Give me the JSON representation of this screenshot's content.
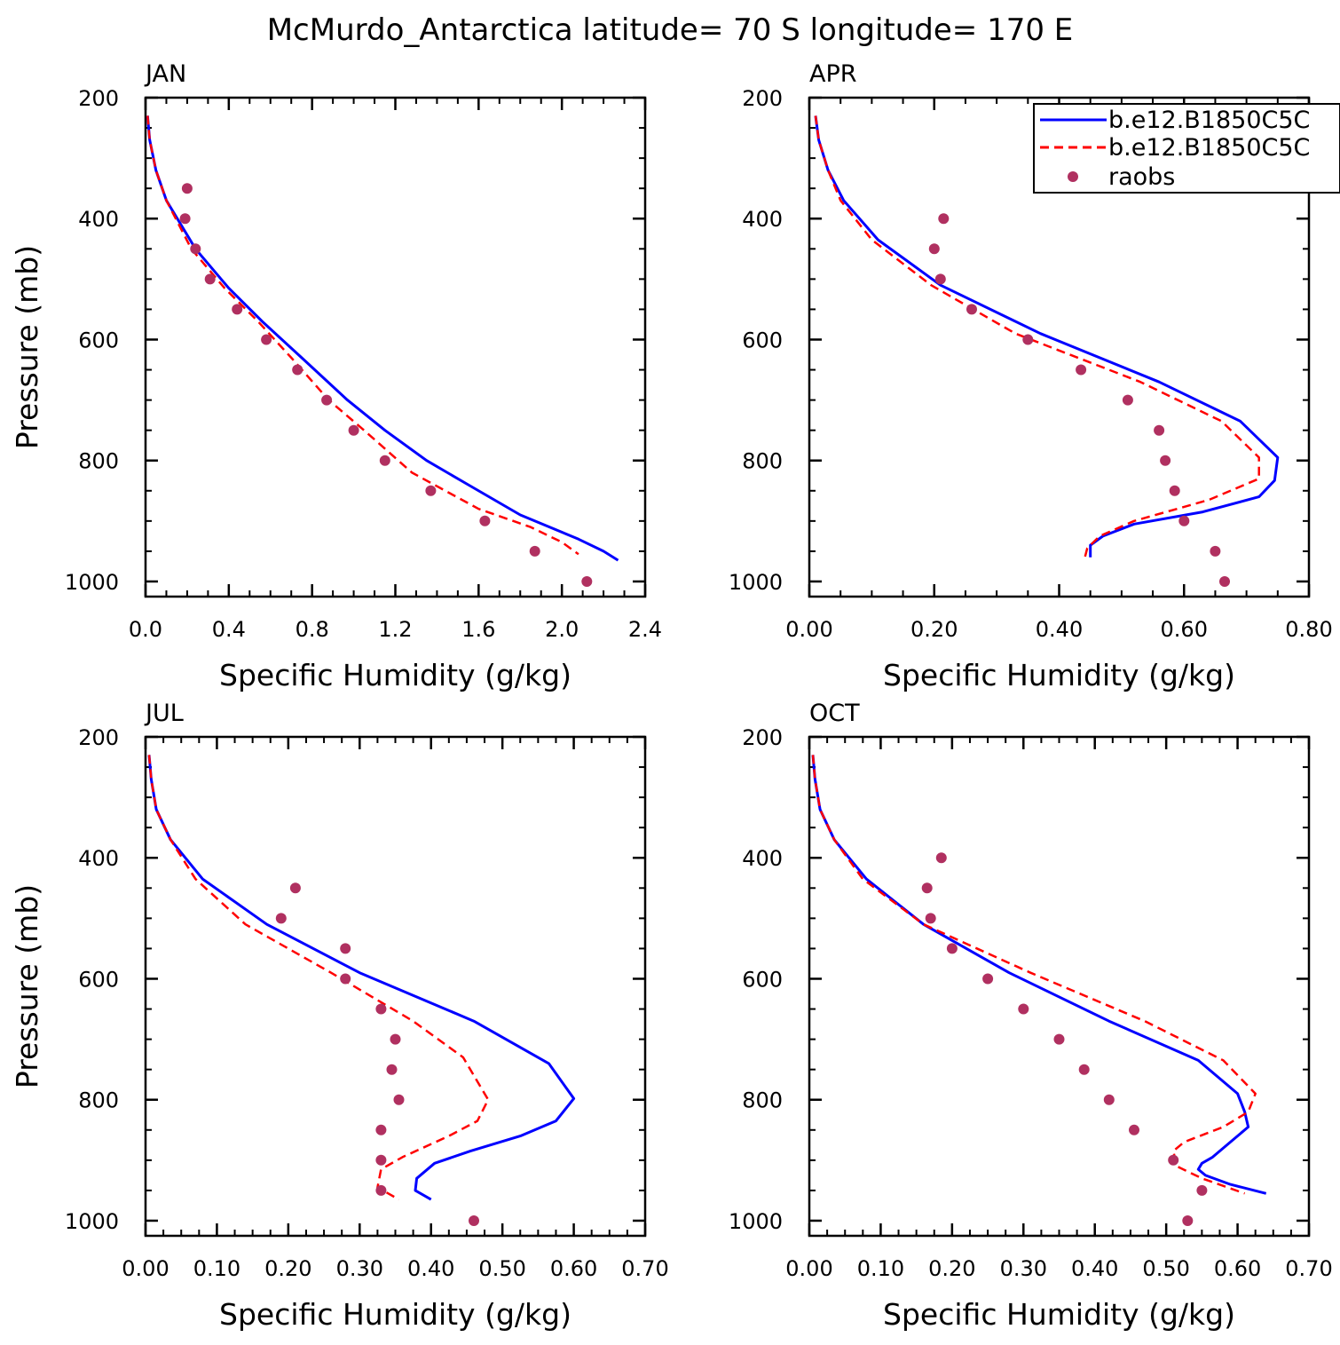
{
  "title": "McMurdo_Antarctica  latitude= 70 S longitude= 170 E",
  "legend": {
    "placement": "top-right of APR panel",
    "entries": [
      {
        "label": "b.e12.B1850C5C",
        "style": "solid",
        "color": "#0000ff"
      },
      {
        "label": "b.e12.B1850C5C",
        "style": "dashed",
        "color": "#ff0000"
      },
      {
        "label": "raobs",
        "style": "dots",
        "color": "#b03060"
      }
    ]
  },
  "colors": {
    "model_solid": "#0000ff",
    "model_dashed": "#ff0000",
    "raobs": "#b03060"
  },
  "chart_data": [
    {
      "type": "line",
      "panel_label": "JAN",
      "xlabel": "Specific Humidity (g/kg)",
      "ylabel": "Pressure (mb)",
      "xlim": [
        0,
        2.4
      ],
      "ylim": [
        200,
        1025
      ],
      "y_inverted": true,
      "xticks": [
        "0.0",
        "0.4",
        "0.8",
        "1.2",
        "1.6",
        "2.0",
        "2.4"
      ],
      "xtick_values": [
        0,
        0.4,
        0.8,
        1.2,
        1.6,
        2.0,
        2.4
      ],
      "xminor": 0.1,
      "yticks": [
        "200",
        "400",
        "600",
        "800",
        "1000"
      ],
      "ytick_values": [
        200,
        400,
        600,
        800,
        1000
      ],
      "yminor": 50,
      "series": [
        {
          "style": "solid",
          "color": "#0000ff",
          "x": [
            0.01,
            0.02,
            0.05,
            0.1,
            0.24,
            0.4,
            0.56,
            0.75,
            0.97,
            1.15,
            1.35,
            1.55,
            1.8,
            2.08,
            2.2,
            2.27
          ],
          "y": [
            230,
            270,
            320,
            370,
            450,
            515,
            570,
            630,
            700,
            750,
            800,
            840,
            890,
            930,
            950,
            965
          ]
        },
        {
          "style": "dashed",
          "color": "#ff0000",
          "x": [
            0.01,
            0.02,
            0.05,
            0.1,
            0.22,
            0.38,
            0.54,
            0.7,
            0.88,
            1.05,
            1.28,
            1.6,
            1.85,
            2.0,
            2.08
          ],
          "y": [
            230,
            270,
            320,
            370,
            450,
            515,
            570,
            630,
            700,
            750,
            820,
            880,
            910,
            935,
            955
          ]
        }
      ],
      "points": {
        "label": "raobs",
        "color": "#b03060",
        "x": [
          0.2,
          0.19,
          0.24,
          0.31,
          0.44,
          0.58,
          0.73,
          0.87,
          1.0,
          1.15,
          1.37,
          1.63,
          1.87,
          2.12
        ],
        "y": [
          350,
          400,
          450,
          500,
          550,
          600,
          650,
          700,
          750,
          800,
          850,
          900,
          950,
          1000
        ]
      }
    },
    {
      "type": "line",
      "panel_label": "APR",
      "xlabel": "Specific Humidity (g/kg)",
      "ylabel": "",
      "xlim": [
        0,
        0.8
      ],
      "ylim": [
        200,
        1025
      ],
      "y_inverted": true,
      "xticks": [
        "0.00",
        "0.20",
        "0.40",
        "0.60",
        "0.80"
      ],
      "xtick_values": [
        0,
        0.2,
        0.4,
        0.6,
        0.8
      ],
      "xminor": 0.05,
      "yticks": [
        "200",
        "400",
        "600",
        "800",
        "1000"
      ],
      "ytick_values": [
        200,
        400,
        600,
        800,
        1000
      ],
      "yminor": 50,
      "series": [
        {
          "style": "solid",
          "color": "#0000ff",
          "x": [
            0.01,
            0.015,
            0.03,
            0.055,
            0.11,
            0.21,
            0.37,
            0.56,
            0.69,
            0.75,
            0.745,
            0.72,
            0.63,
            0.52,
            0.47,
            0.45,
            0.45
          ],
          "y": [
            230,
            270,
            320,
            370,
            435,
            510,
            590,
            670,
            735,
            795,
            833,
            860,
            885,
            905,
            925,
            940,
            960
          ]
        },
        {
          "style": "dashed",
          "color": "#ff0000",
          "x": [
            0.01,
            0.015,
            0.03,
            0.05,
            0.1,
            0.195,
            0.33,
            0.53,
            0.66,
            0.72,
            0.72,
            0.64,
            0.52,
            0.465,
            0.445,
            0.44
          ],
          "y": [
            230,
            270,
            320,
            370,
            435,
            510,
            590,
            670,
            735,
            795,
            830,
            865,
            900,
            925,
            945,
            965
          ]
        }
      ],
      "points": {
        "label": "raobs",
        "color": "#b03060",
        "x": [
          0.215,
          0.2,
          0.21,
          0.26,
          0.35,
          0.435,
          0.51,
          0.56,
          0.57,
          0.585,
          0.6,
          0.65,
          0.665
        ],
        "y": [
          400,
          450,
          500,
          550,
          600,
          650,
          700,
          750,
          800,
          850,
          900,
          950,
          1000
        ]
      }
    },
    {
      "type": "line",
      "panel_label": "JUL",
      "xlabel": "Specific Humidity (g/kg)",
      "ylabel": "Pressure (mb)",
      "xlim": [
        0,
        0.7
      ],
      "ylim": [
        200,
        1025
      ],
      "y_inverted": true,
      "xticks": [
        "0.00",
        "0.10",
        "0.20",
        "0.30",
        "0.40",
        "0.50",
        "0.60",
        "0.70"
      ],
      "xtick_values": [
        0,
        0.1,
        0.2,
        0.3,
        0.4,
        0.5,
        0.6,
        0.7
      ],
      "xminor": 0.025,
      "yticks": [
        "200",
        "400",
        "600",
        "800",
        "1000"
      ],
      "ytick_values": [
        200,
        400,
        600,
        800,
        1000
      ],
      "yminor": 50,
      "series": [
        {
          "style": "solid",
          "color": "#0000ff",
          "x": [
            0.005,
            0.008,
            0.015,
            0.035,
            0.08,
            0.17,
            0.3,
            0.46,
            0.565,
            0.6,
            0.575,
            0.525,
            0.455,
            0.405,
            0.38,
            0.378,
            0.4
          ],
          "y": [
            230,
            270,
            320,
            370,
            435,
            510,
            590,
            670,
            740,
            798,
            835,
            860,
            885,
            905,
            930,
            950,
            965
          ]
        },
        {
          "style": "dashed",
          "color": "#ff0000",
          "x": [
            0.005,
            0.008,
            0.015,
            0.035,
            0.07,
            0.14,
            0.26,
            0.375,
            0.445,
            0.465,
            0.48,
            0.465,
            0.425,
            0.36,
            0.33,
            0.325,
            0.355
          ],
          "y": [
            230,
            270,
            320,
            370,
            435,
            510,
            590,
            670,
            730,
            770,
            800,
            835,
            860,
            895,
            915,
            945,
            965
          ]
        }
      ],
      "points": {
        "label": "raobs",
        "color": "#b03060",
        "x": [
          0.21,
          0.19,
          0.28,
          0.28,
          0.33,
          0.35,
          0.345,
          0.355,
          0.33,
          0.33,
          0.33,
          0.46
        ],
        "y": [
          450,
          500,
          550,
          600,
          650,
          700,
          750,
          800,
          850,
          900,
          950,
          1000
        ]
      }
    },
    {
      "type": "line",
      "panel_label": "OCT",
      "xlabel": "Specific Humidity (g/kg)",
      "ylabel": "",
      "xlim": [
        0,
        0.7
      ],
      "ylim": [
        200,
        1025
      ],
      "y_inverted": true,
      "xticks": [
        "0.00",
        "0.10",
        "0.20",
        "0.30",
        "0.40",
        "0.50",
        "0.60",
        "0.70"
      ],
      "xtick_values": [
        0,
        0.1,
        0.2,
        0.3,
        0.4,
        0.5,
        0.6,
        0.7
      ],
      "xminor": 0.025,
      "yticks": [
        "200",
        "400",
        "600",
        "800",
        "1000"
      ],
      "ytick_values": [
        200,
        400,
        600,
        800,
        1000
      ],
      "yminor": 50,
      "series": [
        {
          "style": "solid",
          "color": "#0000ff",
          "x": [
            0.005,
            0.008,
            0.015,
            0.035,
            0.08,
            0.16,
            0.28,
            0.42,
            0.545,
            0.6,
            0.61,
            0.615,
            0.59,
            0.565,
            0.55,
            0.545,
            0.555,
            0.59,
            0.64
          ],
          "y": [
            230,
            270,
            320,
            370,
            435,
            510,
            590,
            670,
            735,
            790,
            820,
            845,
            870,
            895,
            905,
            915,
            925,
            940,
            955
          ]
        },
        {
          "style": "dashed",
          "color": "#ff0000",
          "x": [
            0.005,
            0.008,
            0.015,
            0.035,
            0.075,
            0.16,
            0.31,
            0.47,
            0.58,
            0.625,
            0.615,
            0.58,
            0.525,
            0.51,
            0.515,
            0.55,
            0.61
          ],
          "y": [
            230,
            270,
            320,
            370,
            435,
            510,
            590,
            670,
            735,
            790,
            820,
            845,
            870,
            885,
            910,
            930,
            955
          ]
        }
      ],
      "points": {
        "label": "raobs",
        "color": "#b03060",
        "x": [
          0.185,
          0.165,
          0.17,
          0.2,
          0.25,
          0.3,
          0.35,
          0.385,
          0.42,
          0.455,
          0.51,
          0.55,
          0.53
        ],
        "y": [
          400,
          450,
          500,
          550,
          600,
          650,
          700,
          750,
          800,
          850,
          900,
          950,
          1000
        ]
      }
    }
  ]
}
